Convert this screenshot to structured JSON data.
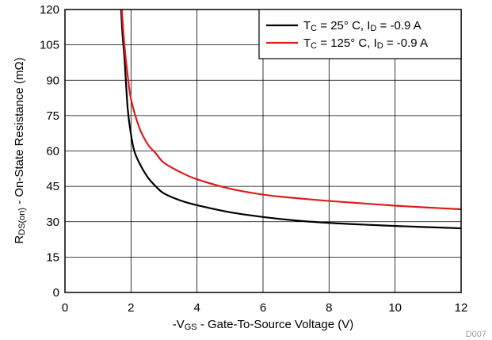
{
  "chart_data": {
    "type": "line",
    "xlabel": "-V_GS - Gate-To-Source Voltage (V)",
    "ylabel": "R_DS(on) - On-State Resistance (mΩ)",
    "xlim": [
      0,
      12
    ],
    "ylim": [
      0,
      120
    ],
    "xticks": [
      0,
      2,
      4,
      6,
      8,
      10,
      12
    ],
    "yticks": [
      0,
      15,
      30,
      45,
      60,
      75,
      90,
      105,
      120
    ],
    "grid": true,
    "legend_position": "top-right",
    "figure_id": "D007",
    "series": [
      {
        "name": "T_C = 25° C, I_D = -0.9 A",
        "color": "#000000",
        "x": [
          1.7,
          1.75,
          1.8,
          1.9,
          2.0,
          2.1,
          2.25,
          2.5,
          2.75,
          3.0,
          3.5,
          4.0,
          5.0,
          6.0,
          7.0,
          8.0,
          9.0,
          10.0,
          11.0,
          12.0
        ],
        "y": [
          120,
          108,
          100,
          78,
          67,
          60,
          55,
          49,
          45,
          42,
          39,
          37,
          34,
          32,
          30.5,
          29.5,
          28.8,
          28.2,
          27.7,
          27.2
        ]
      },
      {
        "name": "T_C = 125° C, I_D = -0.9 A",
        "color": "#e01a1a",
        "x": [
          1.72,
          1.8,
          1.9,
          2.0,
          2.25,
          2.5,
          2.75,
          3.0,
          3.5,
          4.0,
          5.0,
          6.0,
          7.0,
          8.0,
          9.0,
          10.0,
          11.0,
          12.0
        ],
        "y": [
          120,
          105,
          92,
          82,
          70,
          63,
          59,
          55,
          51,
          48,
          44,
          41.5,
          40,
          38.8,
          37.8,
          36.8,
          36,
          35.3
        ]
      }
    ]
  }
}
